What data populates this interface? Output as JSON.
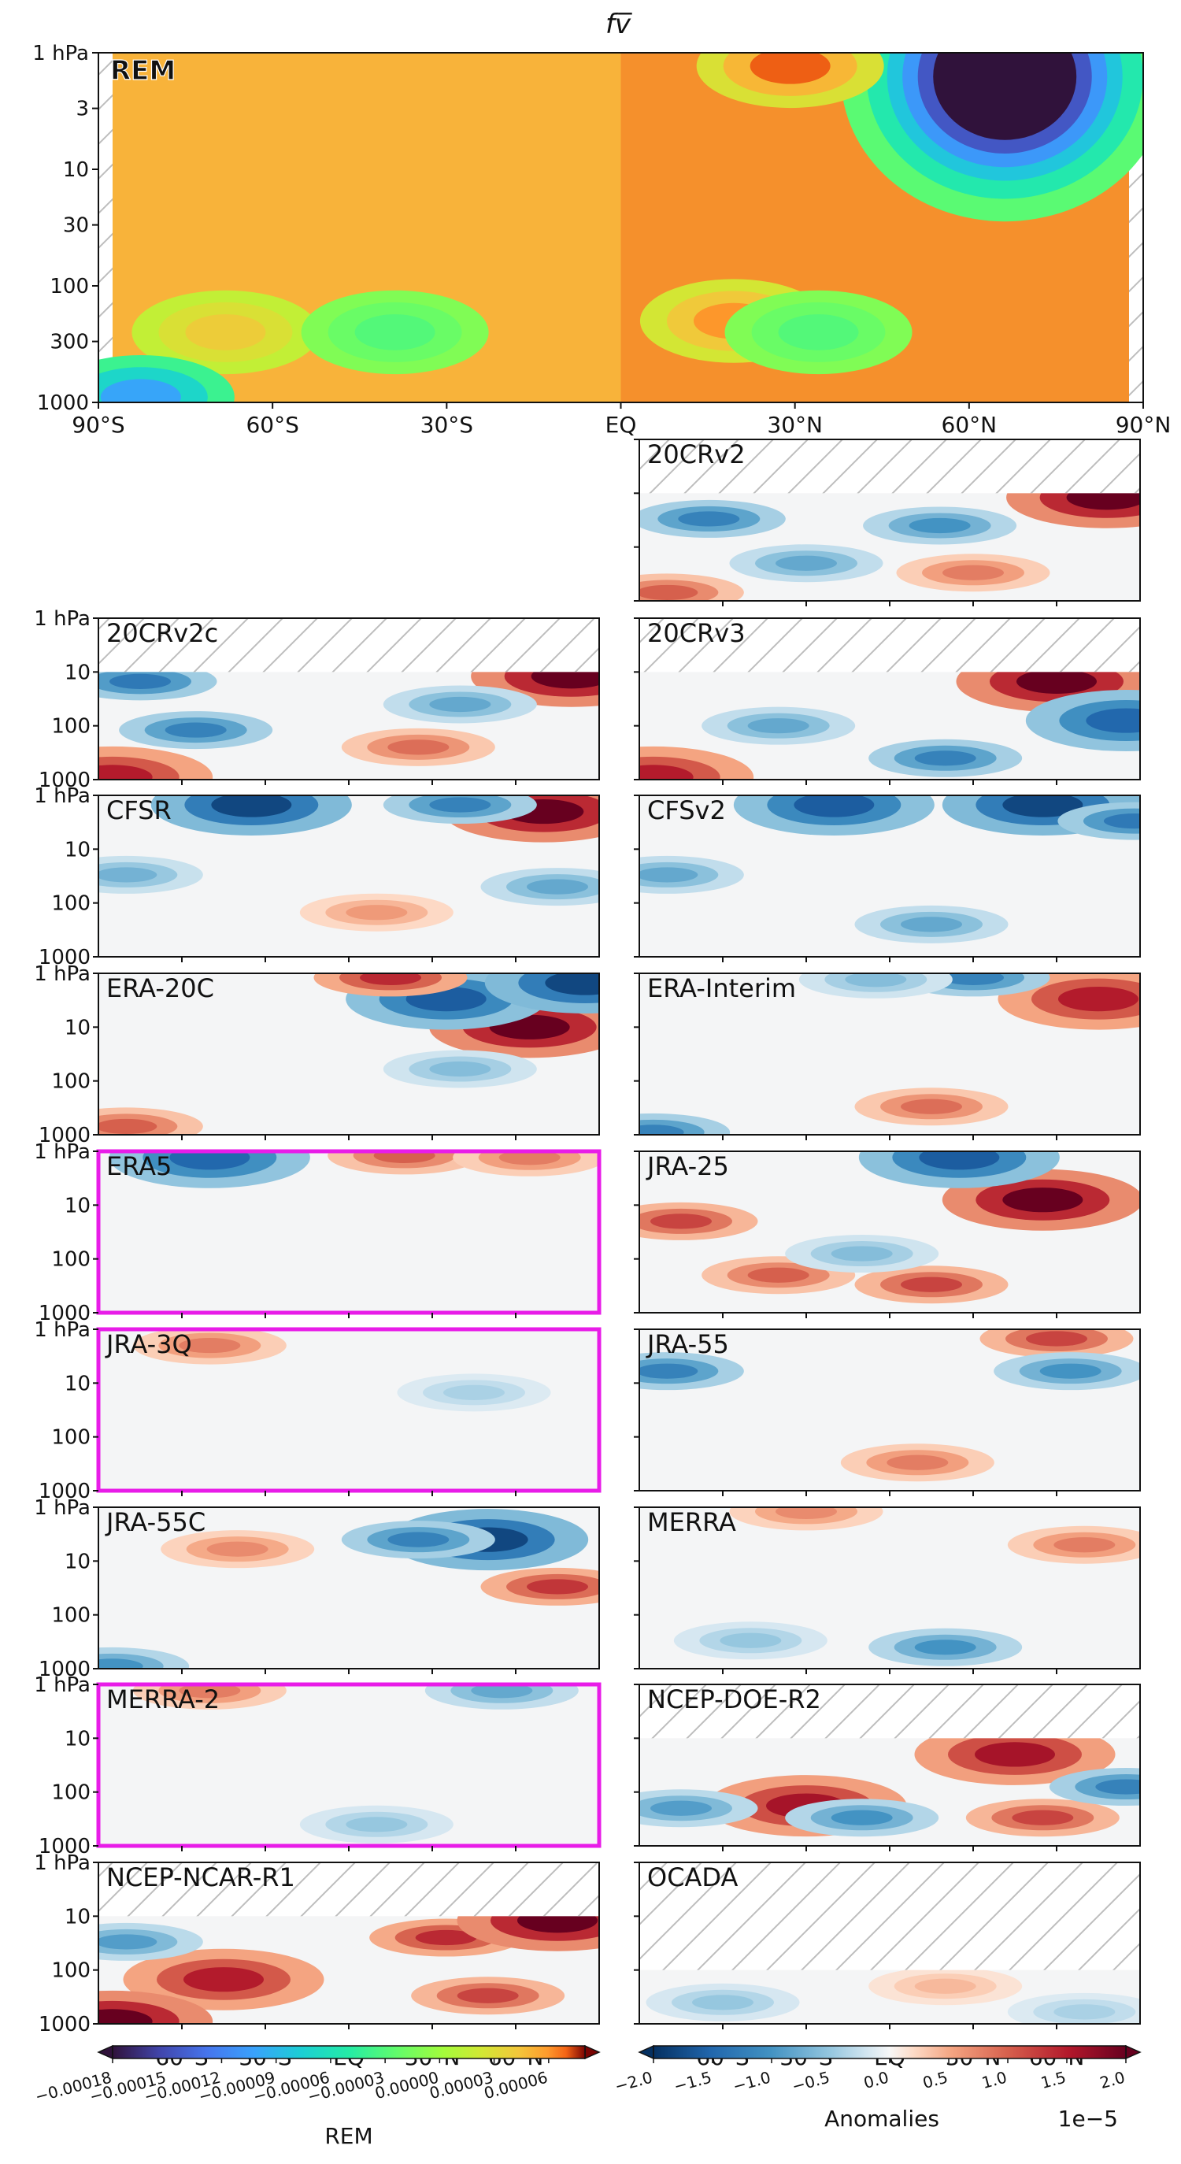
{
  "figure": {
    "title": "fv̅",
    "colors": {
      "highlight": "#e81ce8",
      "frame": "#111111",
      "hatch": "#bdbdbd",
      "rem_label": "#ff40ff"
    }
  },
  "chart_data": [
    {
      "type": "heatmap",
      "id": "rem",
      "label": "REM",
      "title": "fv̅",
      "x_ticks": [
        "90°S",
        "60°S",
        "30°S",
        "EQ",
        "30°N",
        "60°N",
        "90°N"
      ],
      "xlim": [
        -90,
        90
      ],
      "y_ticks": [
        "1 hPa",
        "3",
        "10",
        "30",
        "100",
        "300",
        "1000"
      ],
      "ylim_hPa": [
        1000,
        1
      ],
      "colormap": "turbo",
      "features": [
        {
          "lat": 68,
          "p": 1.6,
          "value": -0.00018,
          "desc": "strong negative maximum near top, high northern latitudes"
        },
        {
          "lat": 30,
          "p": 1.3,
          "value": 7e-05,
          "desc": "strong positive near stratopause, subtropics"
        },
        {
          "lat": 20,
          "p": 200,
          "value": 6e-05,
          "desc": "positive upper troposphere NH"
        },
        {
          "lat": -70,
          "p": 250,
          "value": 4e-05,
          "desc": "positive upper troposphere SH"
        },
        {
          "lat": -40,
          "p": 250,
          "value": -3e-05,
          "desc": "weak negative SH midlatitudes"
        },
        {
          "lat": 35,
          "p": 250,
          "value": -3e-05,
          "desc": "weak negative NH midlatitudes"
        },
        {
          "lat": -85,
          "p": 900,
          "value": -0.0001,
          "desc": "negative near surface, Antarctica"
        }
      ]
    },
    {
      "type": "heatmap",
      "id": "20CRv2",
      "label": "20CRv2",
      "top_hPa": 10,
      "features": [
        {
          "lat": 78,
          "p": 12,
          "value": 2e-05
        },
        {
          "lat": -65,
          "p": 30,
          "value": -1.2e-05
        },
        {
          "lat": 18,
          "p": 40,
          "value": -1e-05
        },
        {
          "lat": -30,
          "p": 200,
          "value": -8e-06
        },
        {
          "lat": 30,
          "p": 300,
          "value": 8e-06
        },
        {
          "lat": -80,
          "p": 700,
          "value": 1e-05
        }
      ]
    },
    {
      "type": "heatmap",
      "id": "20CRv2c",
      "label": "20CRv2c",
      "top_hPa": 10,
      "features": [
        {
          "lat": 80,
          "p": 12,
          "value": 2e-05
        },
        {
          "lat": -75,
          "p": 15,
          "value": -1.3e-05
        },
        {
          "lat": -55,
          "p": 120,
          "value": -1.2e-05
        },
        {
          "lat": 40,
          "p": 40,
          "value": -8e-06
        },
        {
          "lat": 25,
          "p": 250,
          "value": 9e-06
        },
        {
          "lat": -85,
          "p": 900,
          "value": 1.5e-05
        }
      ]
    },
    {
      "type": "heatmap",
      "id": "20CRv3",
      "label": "20CRv3",
      "top_hPa": 10,
      "features": [
        {
          "lat": 60,
          "p": 15,
          "value": 2e-05
        },
        {
          "lat": 85,
          "p": 80,
          "value": -1.5e-05
        },
        {
          "lat": 20,
          "p": 400,
          "value": -1.2e-05
        },
        {
          "lat": -40,
          "p": 100,
          "value": -8e-06
        },
        {
          "lat": -85,
          "p": 900,
          "value": 1.5e-05
        }
      ]
    },
    {
      "type": "heatmap",
      "id": "CFSR",
      "label": "CFSR",
      "top_hPa": 1,
      "features": [
        {
          "lat": 70,
          "p": 2,
          "value": 2e-05
        },
        {
          "lat": -35,
          "p": 1.5,
          "value": -1.8e-05
        },
        {
          "lat": 40,
          "p": 1.5,
          "value": -1.2e-05
        },
        {
          "lat": 75,
          "p": 50,
          "value": -8e-06
        },
        {
          "lat": -80,
          "p": 30,
          "value": -7e-06
        },
        {
          "lat": 10,
          "p": 150,
          "value": 6e-06
        }
      ]
    },
    {
      "type": "heatmap",
      "id": "CFSv2",
      "label": "CFSv2",
      "top_hPa": 1,
      "features": [
        {
          "lat": 55,
          "p": 1.5,
          "value": -1.8e-05
        },
        {
          "lat": -20,
          "p": 1.5,
          "value": -1.6e-05
        },
        {
          "lat": 88,
          "p": 3,
          "value": -1.3e-05
        },
        {
          "lat": -80,
          "p": 30,
          "value": -8e-06
        },
        {
          "lat": 15,
          "p": 250,
          "value": -8e-06
        }
      ]
    },
    {
      "type": "heatmap",
      "id": "ERA-20C",
      "label": "ERA-20C",
      "top_hPa": 1,
      "features": [
        {
          "lat": 65,
          "p": 10,
          "value": 2e-05
        },
        {
          "lat": 35,
          "p": 3,
          "value": -1.6e-05
        },
        {
          "lat": 85,
          "p": 1.5,
          "value": -1.8e-05
        },
        {
          "lat": 15,
          "p": 1.2,
          "value": 1.4e-05
        },
        {
          "lat": 40,
          "p": 60,
          "value": -6e-06
        },
        {
          "lat": -80,
          "p": 700,
          "value": 1e-05
        }
      ]
    },
    {
      "type": "heatmap",
      "id": "ERA-Interim",
      "label": "ERA-Interim",
      "top_hPa": 1,
      "features": [
        {
          "lat": 75,
          "p": 3,
          "value": 1.5e-05
        },
        {
          "lat": 30,
          "p": 1.2,
          "value": -1.2e-05
        },
        {
          "lat": -5,
          "p": 1.3,
          "value": -6e-06
        },
        {
          "lat": 15,
          "p": 300,
          "value": 9e-06
        },
        {
          "lat": -85,
          "p": 900,
          "value": -1.2e-05
        }
      ]
    },
    {
      "type": "heatmap",
      "id": "ERA5",
      "label": "ERA5",
      "highlighted": true,
      "top_hPa": 1,
      "features": [
        {
          "lat": -50,
          "p": 1.3,
          "value": -1.5e-05
        },
        {
          "lat": 20,
          "p": 1.2,
          "value": 1e-05
        },
        {
          "lat": 65,
          "p": 1.3,
          "value": 8e-06
        }
      ]
    },
    {
      "type": "heatmap",
      "id": "JRA-25",
      "label": "JRA-25",
      "top_hPa": 1,
      "features": [
        {
          "lat": 55,
          "p": 8,
          "value": 2e-05
        },
        {
          "lat": 25,
          "p": 1.3,
          "value": -1.6e-05
        },
        {
          "lat": -75,
          "p": 20,
          "value": 1.2e-05
        },
        {
          "lat": -40,
          "p": 200,
          "value": 1e-05
        },
        {
          "lat": 15,
          "p": 300,
          "value": 1.2e-05
        },
        {
          "lat": -10,
          "p": 80,
          "value": -6e-06
        }
      ]
    },
    {
      "type": "heatmap",
      "id": "JRA-3Q",
      "label": "JRA-3Q",
      "highlighted": true,
      "top_hPa": 1,
      "features": [
        {
          "lat": -50,
          "p": 2,
          "value": 8e-06
        },
        {
          "lat": 45,
          "p": 15,
          "value": -4e-06
        }
      ]
    },
    {
      "type": "heatmap",
      "id": "JRA-55",
      "label": "JRA-55",
      "top_hPa": 1,
      "features": [
        {
          "lat": 60,
          "p": 1.5,
          "value": 1.2e-05
        },
        {
          "lat": 65,
          "p": 6,
          "value": -1e-05
        },
        {
          "lat": -80,
          "p": 6,
          "value": -1.2e-05
        },
        {
          "lat": 10,
          "p": 300,
          "value": 8e-06
        }
      ]
    },
    {
      "type": "heatmap",
      "id": "JRA-55C",
      "label": "JRA-55C",
      "top_hPa": 1,
      "features": [
        {
          "lat": 50,
          "p": 4,
          "value": -1.8e-05
        },
        {
          "lat": 75,
          "p": 30,
          "value": 1.3e-05
        },
        {
          "lat": 25,
          "p": 4,
          "value": -1.2e-05
        },
        {
          "lat": -40,
          "p": 6,
          "value": 7e-06
        },
        {
          "lat": -85,
          "p": 900,
          "value": -1e-05
        }
      ]
    },
    {
      "type": "heatmap",
      "id": "MERRA",
      "label": "MERRA",
      "top_hPa": 1,
      "features": [
        {
          "lat": -30,
          "p": 1.2,
          "value": 7e-06
        },
        {
          "lat": 70,
          "p": 5,
          "value": 8e-06
        },
        {
          "lat": 20,
          "p": 400,
          "value": -1e-05
        },
        {
          "lat": -50,
          "p": 300,
          "value": -5e-06
        }
      ]
    },
    {
      "type": "heatmap",
      "id": "MERRA-2",
      "label": "MERRA-2",
      "highlighted": true,
      "top_hPa": 1,
      "features": [
        {
          "lat": -50,
          "p": 1.3,
          "value": 8e-06
        },
        {
          "lat": 55,
          "p": 1.3,
          "value": -8e-06
        },
        {
          "lat": 10,
          "p": 400,
          "value": -5e-06
        }
      ]
    },
    {
      "type": "heatmap",
      "id": "NCEP-DOE-R2",
      "label": "NCEP-DOE-R2",
      "top_hPa": 10,
      "features": [
        {
          "lat": 45,
          "p": 20,
          "value": 1.6e-05
        },
        {
          "lat": -30,
          "p": 180,
          "value": 1.6e-05
        },
        {
          "lat": 55,
          "p": 300,
          "value": 1.2e-05
        },
        {
          "lat": 85,
          "p": 80,
          "value": -1.2e-05
        },
        {
          "lat": -75,
          "p": 200,
          "value": -9e-06
        },
        {
          "lat": -10,
          "p": 300,
          "value": -1e-05
        }
      ]
    },
    {
      "type": "heatmap",
      "id": "NCEP-NCAR-R1",
      "label": "NCEP-NCAR-R1",
      "top_hPa": 10,
      "features": [
        {
          "lat": 35,
          "p": 25,
          "value": 1.4e-05
        },
        {
          "lat": -45,
          "p": 150,
          "value": 1.5e-05
        },
        {
          "lat": 75,
          "p": 12,
          "value": 2e-05
        },
        {
          "lat": 50,
          "p": 300,
          "value": 1.2e-05
        },
        {
          "lat": -80,
          "p": 30,
          "value": -9e-06
        },
        {
          "lat": -85,
          "p": 900,
          "value": 2e-05
        }
      ]
    },
    {
      "type": "heatmap",
      "id": "OCADA",
      "label": "OCADA",
      "top_hPa": 100,
      "features": [
        {
          "lat": -60,
          "p": 400,
          "value": -5e-06
        },
        {
          "lat": 20,
          "p": 200,
          "value": 4e-06
        },
        {
          "lat": 70,
          "p": 600,
          "value": -4e-06
        }
      ]
    }
  ],
  "anomaly_axes": {
    "y_ticks": [
      "1 hPa",
      "10",
      "100",
      "1000"
    ],
    "x_ticks": [
      "60°S",
      "30°S",
      "EQ",
      "30°N",
      "60°N"
    ]
  },
  "colorbars": {
    "rem": {
      "label": "REM",
      "colormap": "turbo",
      "range": [
        -0.00018,
        8e-05
      ],
      "ticks": [
        "−0.00018",
        "−0.00015",
        "−0.00012",
        "−0.00009",
        "−0.00006",
        "−0.00003",
        "0.00000",
        "0.00003",
        "0.00006"
      ],
      "tick_values": [
        -0.00018,
        -0.00015,
        -0.00012,
        -9e-05,
        -6e-05,
        -3e-05,
        0.0,
        3e-05,
        6e-05
      ]
    },
    "anomalies": {
      "label": "Anomalies",
      "exponent": "1e−5",
      "colormap": "RdBu_r",
      "range": [
        -2.0,
        2.0
      ],
      "ticks": [
        "−2.0",
        "−1.5",
        "−1.0",
        "−0.5",
        "0.0",
        "0.5",
        "1.0",
        "1.5",
        "2.0"
      ],
      "tick_values": [
        -2.0,
        -1.5,
        -1.0,
        -0.5,
        0.0,
        0.5,
        1.0,
        1.5,
        2.0
      ]
    }
  }
}
